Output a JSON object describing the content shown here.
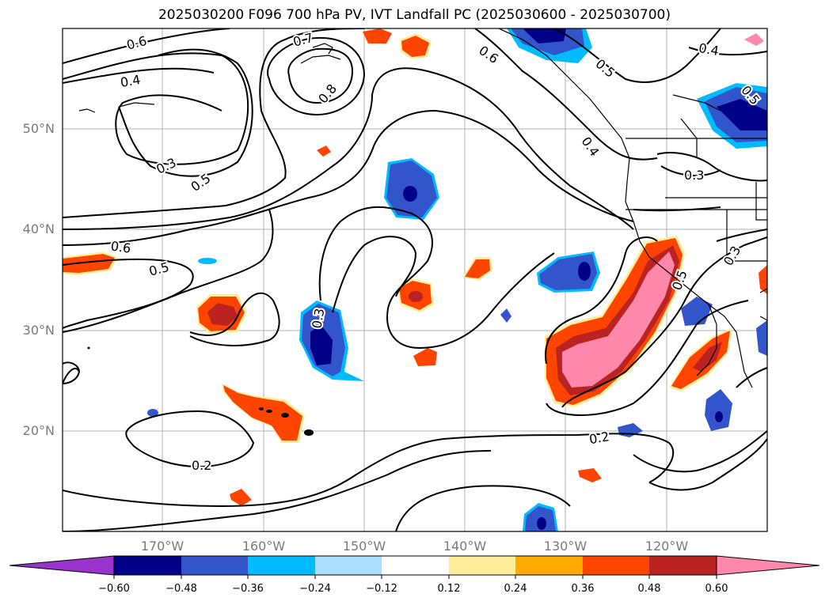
{
  "title": "2025030200 F096 700 hPa PV, IVT Landfall PC (2025030600 - 2025030700)",
  "lat_labels": [
    "50°N",
    "40°N",
    "30°N",
    "20°N"
  ],
  "lon_labels": [
    "170°W",
    "160°W",
    "150°W",
    "140°W",
    "130°W",
    "120°W"
  ],
  "colorbar": {
    "colors": [
      "#9933cc",
      "#000088",
      "#3355cc",
      "#00bbff",
      "#aaddff",
      "#ffffff",
      "#ffee99",
      "#ffaa00",
      "#ff4400",
      "#bb2222",
      "#ff88aa"
    ],
    "tick_labels": [
      "−0.60",
      "−0.48",
      "−0.36",
      "−0.24",
      "−0.12",
      "0.12",
      "0.24",
      "0.36",
      "0.48",
      "0.60"
    ]
  },
  "contour_labels": [
    "0.6",
    "0.4",
    "0.7",
    "0.8",
    "0.6",
    "0.5",
    "0.4",
    "0.5",
    "0.3",
    "0.5",
    "0.6",
    "0.5",
    "0.3",
    "0.4",
    "0.3",
    "0.3",
    "0.5",
    "0.2",
    "0.2"
  ]
}
